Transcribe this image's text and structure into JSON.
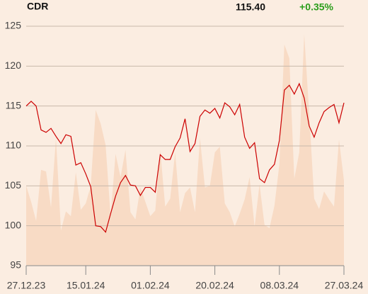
{
  "chart_data": {
    "type": "line",
    "title": "CDR",
    "last_price": "115.40",
    "change": "+0.35%",
    "change_color": "#2a9d1a",
    "x": [
      "27.12.23",
      null,
      null,
      null,
      null,
      null,
      null,
      null,
      null,
      null,
      null,
      null,
      "15.01.24",
      null,
      null,
      null,
      null,
      null,
      null,
      null,
      null,
      null,
      null,
      null,
      null,
      "01.02.24",
      null,
      null,
      null,
      null,
      null,
      null,
      null,
      null,
      null,
      null,
      null,
      null,
      "20.02.24",
      null,
      null,
      null,
      null,
      null,
      null,
      null,
      null,
      null,
      null,
      null,
      null,
      "08.03.24",
      null,
      null,
      null,
      null,
      null,
      null,
      null,
      null,
      null,
      null,
      null,
      null,
      "27.03.24"
    ],
    "series": [
      {
        "type": "area",
        "color": "#f8dbc5",
        "values": [
          105.0,
          103.0,
          100.6,
          107.0,
          106.8,
          102.3,
          111.0,
          99.4,
          101.8,
          101.2,
          106.7,
          102.0,
          102.8,
          105.0,
          114.5,
          112.8,
          110.1,
          101.2,
          109.0,
          106.1,
          109.5,
          101.7,
          100.8,
          104.8,
          103.0,
          101.2,
          101.9,
          109.5,
          102.4,
          103.4,
          109.2,
          101.7,
          104.1,
          104.8,
          101.7,
          111.0,
          104.8,
          105.0,
          109.2,
          109.9,
          102.8,
          101.7,
          99.9,
          101.5,
          103.3,
          106.1,
          99.9,
          105.2,
          100.1,
          99.7,
          102.5,
          107.7,
          122.7,
          121.0,
          105.9,
          109.2,
          124.0,
          114.1,
          103.4,
          102.1,
          104.3,
          103.3,
          102.4,
          110.8,
          105.7
        ]
      },
      {
        "type": "line",
        "color": "#cc0000",
        "values": [
          115.0,
          115.6,
          115.0,
          112.0,
          111.7,
          112.2,
          111.2,
          110.3,
          111.4,
          111.2,
          107.6,
          107.9,
          106.5,
          104.9,
          100.0,
          99.9,
          99.2,
          101.5,
          103.7,
          105.4,
          106.3,
          105.1,
          105.0,
          103.8,
          104.8,
          104.8,
          104.2,
          108.9,
          108.3,
          108.3,
          109.9,
          111.0,
          113.4,
          109.3,
          110.3,
          113.7,
          114.5,
          114.1,
          114.7,
          113.5,
          115.4,
          114.9,
          113.9,
          115.2,
          111.1,
          109.7,
          110.4,
          105.9,
          105.4,
          107.0,
          107.7,
          110.7,
          117.0,
          117.6,
          116.5,
          117.8,
          116.0,
          112.5,
          111.1,
          112.9,
          114.3,
          114.8,
          115.2,
          112.9,
          115.4
        ]
      }
    ],
    "ylim": [
      95,
      125
    ],
    "yticks": [
      95,
      100,
      105,
      110,
      115,
      120,
      125
    ],
    "grid": true
  }
}
